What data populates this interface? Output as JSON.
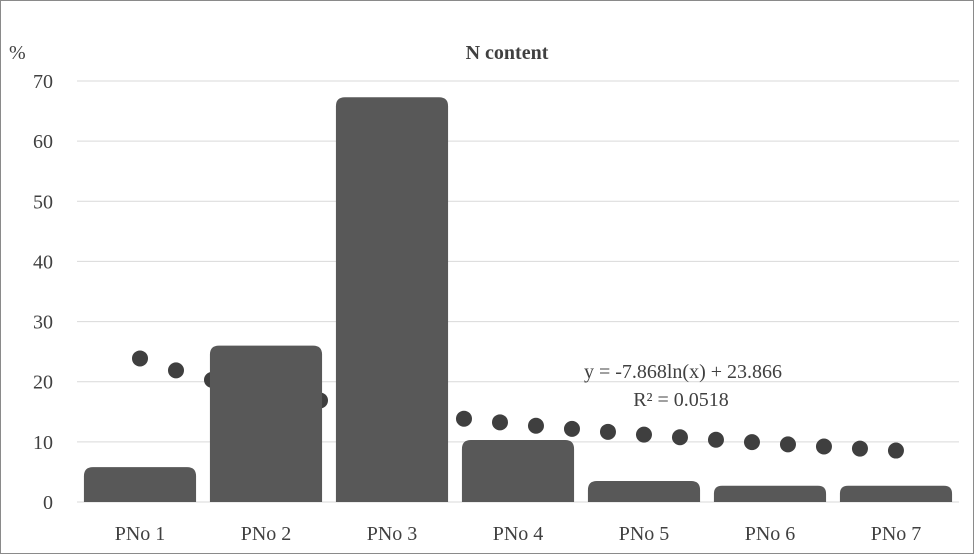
{
  "chart_data": {
    "type": "bar",
    "title": "N content",
    "ylabel": "%",
    "xlabel": "",
    "ylim": [
      0,
      70
    ],
    "yticks": [
      0,
      10,
      20,
      30,
      40,
      50,
      60,
      70
    ],
    "grid": true,
    "categories": [
      "PNo 1",
      "PNo 2",
      "PNo 3",
      "PNo 4",
      "PNo 5",
      "PNo 6",
      "PNo 7"
    ],
    "values": [
      5.8,
      26.0,
      67.3,
      10.3,
      3.5,
      2.7,
      2.7
    ],
    "trendline": {
      "type": "logarithmic",
      "equation": "y = -7.868ln(x) + 23.866",
      "r_squared": "R² = 0.0518",
      "a": -7.868,
      "b": 23.866,
      "style": "round-dot"
    },
    "colors": {
      "bar": "#585858",
      "trendline": "#3f3f3f",
      "grid": "#d9d9d9",
      "text": "#404040"
    }
  }
}
